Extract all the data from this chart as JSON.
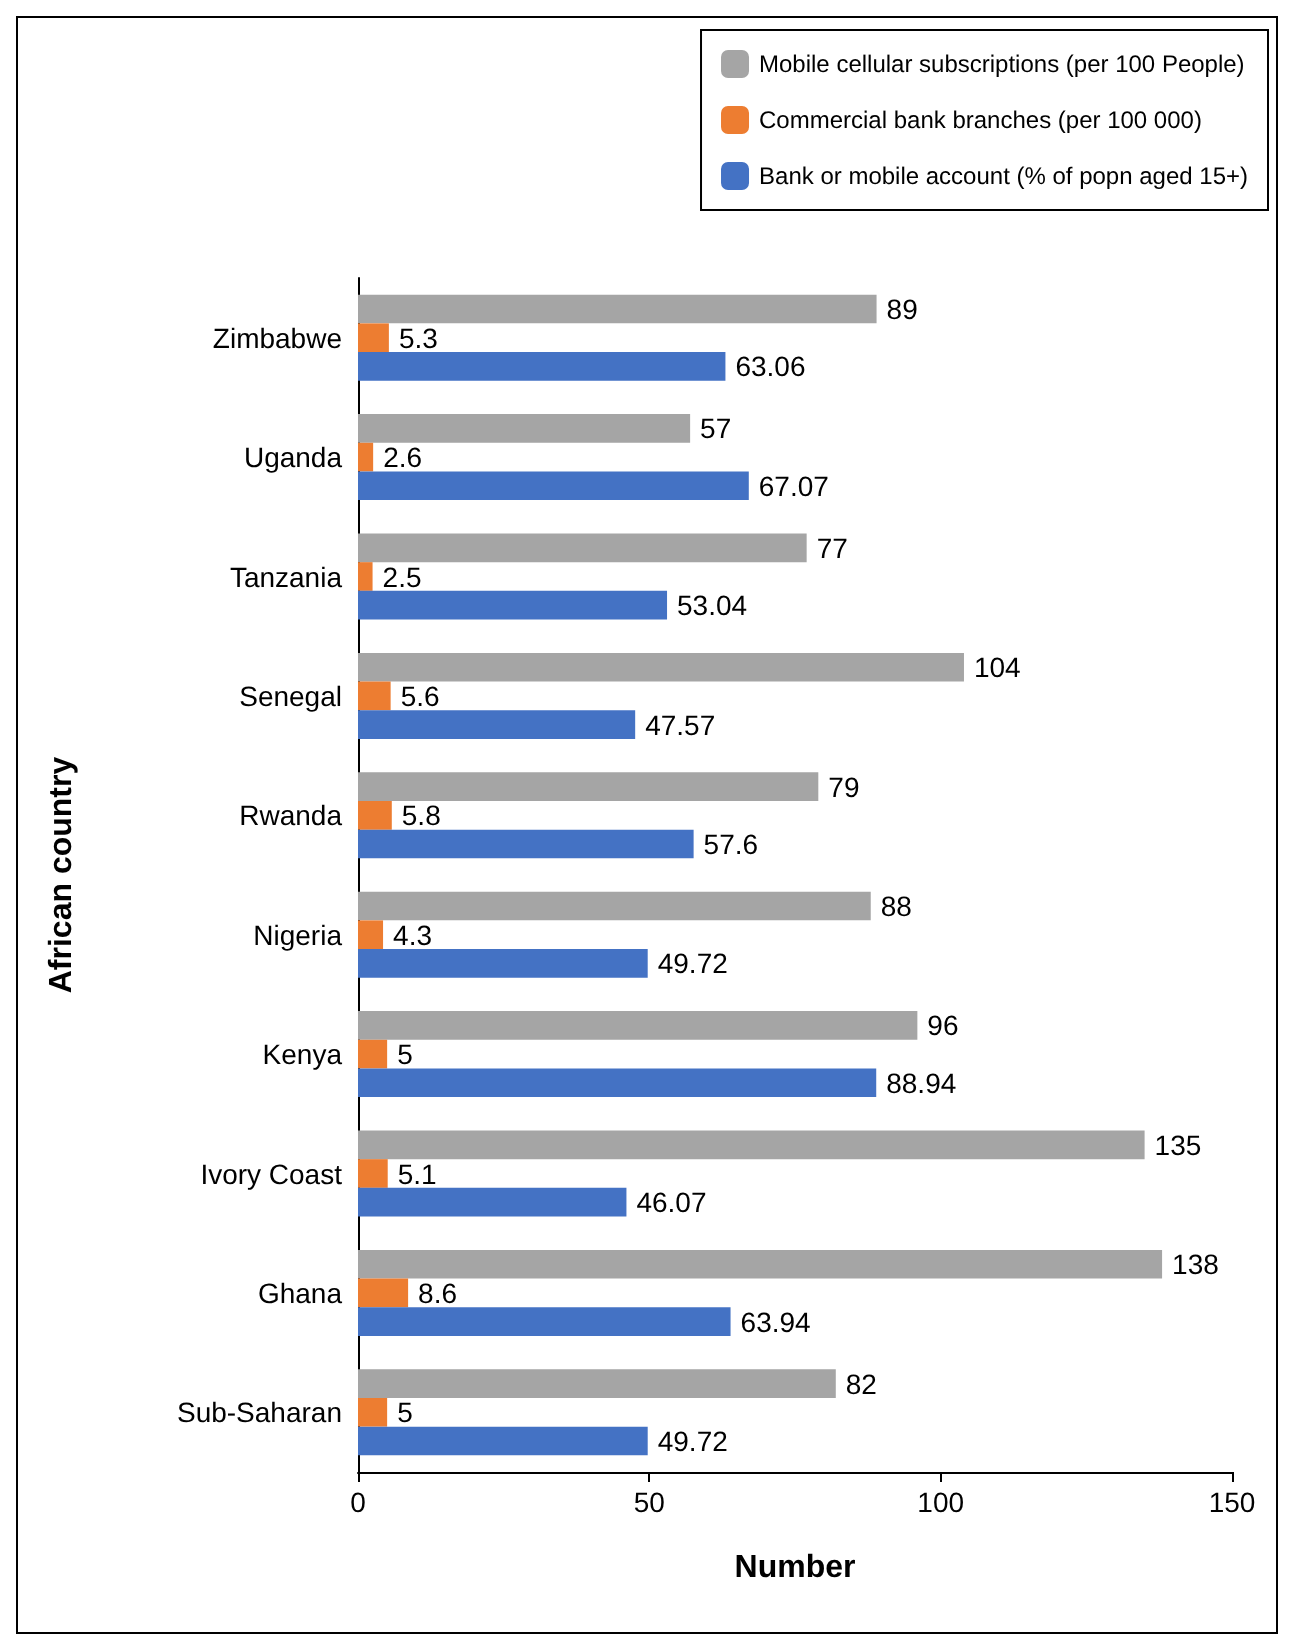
{
  "chart_data": {
    "type": "bar",
    "orientation": "horizontal",
    "xlabel": "Number",
    "ylabel": "African country",
    "categories": [
      "Zimbabwe",
      "Uganda",
      "Tanzania",
      "Senegal",
      "Rwanda",
      "Nigeria",
      "Kenya",
      "Ivory Coast",
      "Ghana",
      "Sub-Saharan"
    ],
    "series": [
      {
        "name": "Mobile cellular subscriptions (per 100 People)",
        "color": "#a5a5a5",
        "values": [
          89,
          57,
          77,
          104,
          79,
          88,
          96,
          135,
          138,
          82
        ]
      },
      {
        "name": "Commercial bank branches (per 100 000)",
        "color": "#ed7d31",
        "values": [
          5.3,
          2.6,
          2.5,
          5.6,
          5.8,
          4.3,
          5,
          5.1,
          8.6,
          5
        ]
      },
      {
        "name": "Bank or mobile account (% of popn aged 15+)",
        "color": "#4472c4",
        "values": [
          63.06,
          67.07,
          53.04,
          47.57,
          57.6,
          49.72,
          88.94,
          46.07,
          63.94,
          49.72
        ]
      }
    ],
    "xlim": [
      0,
      150
    ],
    "xticks": [
      0,
      50,
      100,
      150
    ],
    "grid": false,
    "legend": "top right",
    "data_labels": true
  }
}
